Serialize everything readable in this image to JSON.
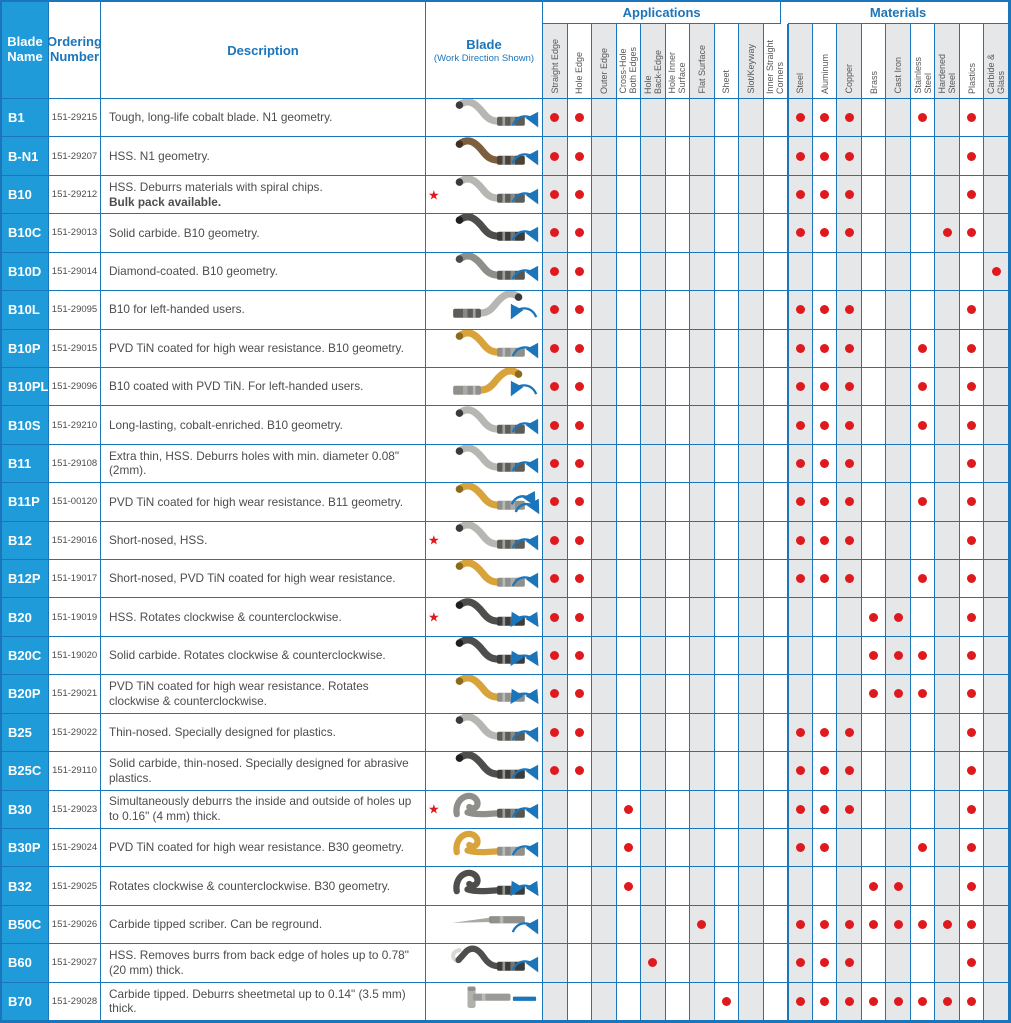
{
  "colors": {
    "accent_blue": "#1b75bb",
    "name_column_blue": "#1f9bd9",
    "dot_red": "#e0191f",
    "column_shade": "#e6e7e8"
  },
  "header": {
    "blade_name": "Blade\nName",
    "ordering_number": "Ordering\nNumber",
    "description": "Description",
    "blade": "Blade",
    "blade_sub": "(Work Direction Shown)",
    "applications": "Applications",
    "materials": "Materials",
    "application_columns": [
      "Straight Edge",
      "Hole Edge",
      "Outer Edge",
      "Cross-Hole\nBoth Edges",
      "Hole\nBack-Edge",
      "Hole Inner\nSurface",
      "Flat Surface",
      "Sheet",
      "Slot/Keyway",
      "Inner Straight\nCorners"
    ],
    "material_columns": [
      "Steel",
      "Aluminum",
      "Copper",
      "Brass",
      "Cast Iron",
      "Stainless\nSteel",
      "Hardened\nSteel",
      "Plastics",
      "Carbide &\nGlass"
    ]
  },
  "rows": [
    {
      "name": "B1",
      "order": "151-29215",
      "desc": "Tough, long-life cobalt blade. N1 geometry.",
      "desc_bold": "",
      "star": false,
      "blade": {
        "shape": "s",
        "color": "silver",
        "mirror": false,
        "arrow": "cw"
      },
      "apps": [
        0,
        1
      ],
      "mats": [
        0,
        1,
        2,
        5,
        7
      ]
    },
    {
      "name": "B-N1",
      "order": "151-29207",
      "desc": "HSS. N1 geometry.",
      "desc_bold": "",
      "star": false,
      "blade": {
        "shape": "s",
        "color": "bronze",
        "mirror": false,
        "arrow": "cw"
      },
      "apps": [
        0,
        1
      ],
      "mats": [
        0,
        1,
        2,
        7
      ]
    },
    {
      "name": "B10",
      "order": "151-29212",
      "desc": "HSS. Deburrs materials with spiral chips.",
      "desc_bold": "Bulk pack available.",
      "star": true,
      "blade": {
        "shape": "s",
        "color": "silver",
        "mirror": false,
        "arrow": "cw"
      },
      "apps": [
        0,
        1
      ],
      "mats": [
        0,
        1,
        2,
        7
      ]
    },
    {
      "name": "B10C",
      "order": "151-29013",
      "desc": "Solid carbide. B10 geometry.",
      "desc_bold": "",
      "star": false,
      "blade": {
        "shape": "s",
        "color": "dark",
        "mirror": false,
        "arrow": "cw"
      },
      "apps": [
        0,
        1
      ],
      "mats": [
        0,
        1,
        2,
        6,
        7
      ]
    },
    {
      "name": "B10D",
      "order": "151-29014",
      "desc": "Diamond-coated. B10 geometry.",
      "desc_bold": "",
      "star": false,
      "blade": {
        "shape": "s",
        "color": "gray",
        "mirror": false,
        "arrow": "cw"
      },
      "apps": [
        0,
        1
      ],
      "mats": [
        8
      ]
    },
    {
      "name": "B10L",
      "order": "151-29095",
      "desc": "B10 for left-handed users.",
      "desc_bold": "",
      "star": false,
      "blade": {
        "shape": "s",
        "color": "silver",
        "mirror": true,
        "arrow": "ccw"
      },
      "apps": [
        0,
        1
      ],
      "mats": [
        0,
        1,
        2,
        7
      ]
    },
    {
      "name": "B10P",
      "order": "151-29015",
      "desc": "PVD TiN coated for high wear resistance. B10 geometry.",
      "desc_bold": "",
      "star": false,
      "blade": {
        "shape": "s",
        "color": "gold",
        "mirror": false,
        "arrow": "cw"
      },
      "apps": [
        0,
        1
      ],
      "mats": [
        0,
        1,
        2,
        5,
        7
      ]
    },
    {
      "name": "B10PL",
      "order": "151-29096",
      "desc": "B10 coated with PVD TiN. For left-handed users.",
      "desc_bold": "",
      "star": false,
      "blade": {
        "shape": "s",
        "color": "gold",
        "mirror": true,
        "arrow": "ccw"
      },
      "apps": [
        0,
        1
      ],
      "mats": [
        0,
        1,
        2,
        5,
        7
      ]
    },
    {
      "name": "B10S",
      "order": "151-29210",
      "desc": "Long-lasting, cobalt-enriched. B10 geometry.",
      "desc_bold": "",
      "star": false,
      "blade": {
        "shape": "s",
        "color": "silver",
        "mirror": false,
        "arrow": "cw"
      },
      "apps": [
        0,
        1
      ],
      "mats": [
        0,
        1,
        2,
        5,
        7
      ]
    },
    {
      "name": "B11",
      "order": "151-29108",
      "desc": "Extra thin, HSS. Deburrs holes with min. diameter 0.08\" (2mm).",
      "desc_bold": "",
      "star": false,
      "blade": {
        "shape": "s",
        "color": "silver",
        "mirror": false,
        "arrow": "cw"
      },
      "apps": [
        0,
        1
      ],
      "mats": [
        0,
        1,
        2,
        7
      ]
    },
    {
      "name": "B11P",
      "order": "151-00120",
      "desc": "PVD TiN coated for high wear resistance. B11 geometry.",
      "desc_bold": "",
      "star": false,
      "blade": {
        "shape": "s",
        "color": "gold",
        "mirror": false,
        "arrow": "double"
      },
      "apps": [
        0,
        1
      ],
      "mats": [
        0,
        1,
        2,
        5,
        7
      ]
    },
    {
      "name": "B12",
      "order": "151-29016",
      "desc": "Short-nosed, HSS.",
      "desc_bold": "",
      "star": true,
      "blade": {
        "shape": "s",
        "color": "silver",
        "mirror": false,
        "arrow": "cw"
      },
      "apps": [
        0,
        1
      ],
      "mats": [
        0,
        1,
        2,
        7
      ]
    },
    {
      "name": "B12P",
      "order": "151-19017",
      "desc": "Short-nosed, PVD TiN coated for high wear resistance.",
      "desc_bold": "",
      "star": false,
      "blade": {
        "shape": "s",
        "color": "gold",
        "mirror": false,
        "arrow": "cw"
      },
      "apps": [
        0,
        1
      ],
      "mats": [
        0,
        1,
        2,
        5,
        7
      ]
    },
    {
      "name": "B20",
      "order": "151-19019",
      "desc": "HSS. Rotates clockwise & counterclockwise.",
      "desc_bold": "",
      "star": true,
      "blade": {
        "shape": "s",
        "color": "dark",
        "mirror": false,
        "arrow": "both"
      },
      "apps": [
        0,
        1
      ],
      "mats": [
        3,
        4,
        7
      ]
    },
    {
      "name": "B20C",
      "order": "151-19020",
      "desc": "Solid carbide. Rotates clockwise & counterclockwise.",
      "desc_bold": "",
      "star": false,
      "blade": {
        "shape": "s",
        "color": "dark",
        "mirror": false,
        "arrow": "both"
      },
      "apps": [
        0,
        1
      ],
      "mats": [
        3,
        4,
        5,
        7
      ]
    },
    {
      "name": "B20P",
      "order": "151-29021",
      "desc": "PVD TiN coated for high wear resistance. Rotates clockwise & counterclockwise.",
      "desc_bold": "",
      "star": false,
      "blade": {
        "shape": "s",
        "color": "gold",
        "mirror": false,
        "arrow": "both"
      },
      "apps": [
        0,
        1
      ],
      "mats": [
        3,
        4,
        5,
        7
      ]
    },
    {
      "name": "B25",
      "order": "151-29022",
      "desc": "Thin-nosed. Specially designed for plastics.",
      "desc_bold": "",
      "star": false,
      "blade": {
        "shape": "s",
        "color": "silver",
        "mirror": false,
        "arrow": "cw"
      },
      "apps": [
        0,
        1
      ],
      "mats": [
        0,
        1,
        2,
        7
      ]
    },
    {
      "name": "B25C",
      "order": "151-29110",
      "desc": "Solid carbide, thin-nosed. Specially designed for abrasive plastics.",
      "desc_bold": "",
      "star": false,
      "blade": {
        "shape": "s",
        "color": "dark",
        "mirror": false,
        "arrow": "cw"
      },
      "apps": [
        0,
        1
      ],
      "mats": [
        0,
        1,
        2,
        7
      ]
    },
    {
      "name": "B30",
      "order": "151-29023",
      "desc": "Simultaneously deburrs the inside and outside of holes up to 0.16\" (4 mm) thick.",
      "desc_bold": "",
      "star": true,
      "blade": {
        "shape": "hook",
        "color": "gray",
        "mirror": false,
        "arrow": "cw"
      },
      "apps": [
        3
      ],
      "mats": [
        0,
        1,
        2,
        7
      ]
    },
    {
      "name": "B30P",
      "order": "151-29024",
      "desc": "PVD TiN coated for high wear resistance. B30 geometry.",
      "desc_bold": "",
      "star": false,
      "blade": {
        "shape": "hook",
        "color": "gold",
        "mirror": false,
        "arrow": "cw"
      },
      "apps": [
        3
      ],
      "mats": [
        0,
        1,
        5,
        7
      ]
    },
    {
      "name": "B32",
      "order": "151-29025",
      "desc": "Rotates clockwise & counterclockwise. B30 geometry.",
      "desc_bold": "",
      "star": false,
      "blade": {
        "shape": "hook",
        "color": "dark",
        "mirror": false,
        "arrow": "both"
      },
      "apps": [
        3
      ],
      "mats": [
        3,
        4,
        7
      ]
    },
    {
      "name": "B50C",
      "order": "151-29026",
      "desc": "Carbide tipped scriber. Can be reground.",
      "desc_bold": "",
      "star": false,
      "blade": {
        "shape": "needle",
        "color": "silver",
        "mirror": false,
        "arrow": "cw"
      },
      "apps": [
        6
      ],
      "mats": [
        0,
        1,
        2,
        3,
        4,
        5,
        6,
        7
      ]
    },
    {
      "name": "B60",
      "order": "151-29027",
      "desc": "HSS. Removes burrs from back edge of holes up to 0.78\" (20 mm) thick.",
      "desc_bold": "",
      "star": false,
      "blade": {
        "shape": "backhook",
        "color": "dark",
        "mirror": false,
        "arrow": "cw"
      },
      "apps": [
        4
      ],
      "mats": [
        0,
        1,
        2,
        7
      ]
    },
    {
      "name": "B70",
      "order": "151-29028",
      "desc": "Carbide tipped. Deburrs sheetmetal up to 0.14\" (3.5 mm) thick.",
      "desc_bold": "",
      "star": false,
      "blade": {
        "shape": "t",
        "color": "silver",
        "mirror": false,
        "arrow": "line"
      },
      "apps": [
        7
      ],
      "mats": [
        0,
        1,
        2,
        3,
        4,
        5,
        6,
        7
      ]
    }
  ]
}
